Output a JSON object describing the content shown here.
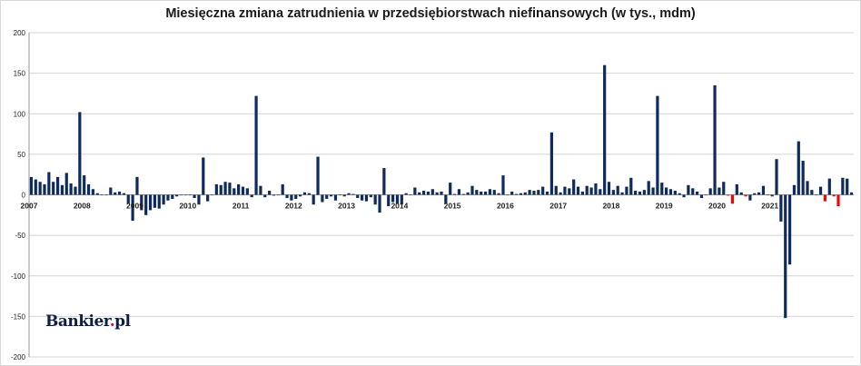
{
  "chart_data": {
    "type": "bar",
    "title": "Miesięczna zmiana zatrudnienia w przedsiębiorstwach niefinansowych (w tys., mdm)",
    "xlabel": "",
    "ylabel": "",
    "ylim": [
      -200,
      200
    ],
    "y_ticks": [
      200,
      150,
      100,
      50,
      0,
      -50,
      -100,
      -150,
      -200
    ],
    "x_labels": [
      "2007",
      "2008",
      "2009",
      "2010",
      "2011",
      "2012",
      "2013",
      "2014",
      "2015",
      "2016",
      "2017",
      "2018",
      "2019",
      "2020",
      "2021"
    ],
    "grid": "horizontal",
    "legend": "none",
    "start": "2007-01",
    "colors": {
      "positive": "#0f2a5c",
      "negative_covid": "#ff0000"
    },
    "values": [
      22,
      19,
      16,
      13,
      28,
      16,
      22,
      12,
      27,
      14,
      10,
      102,
      24,
      13,
      7,
      2,
      0,
      0,
      9,
      3,
      4,
      2,
      -11,
      -32,
      22,
      -19,
      -25,
      -19,
      -16,
      -17,
      -12,
      -7,
      -5,
      -2,
      0,
      0,
      0,
      -4,
      -12,
      46,
      -8,
      0,
      13,
      12,
      16,
      15,
      8,
      13,
      10,
      8,
      -3,
      122,
      11,
      -3,
      5,
      -1,
      0,
      13,
      -4,
      -7,
      -5,
      -2,
      3,
      2,
      -12,
      47,
      -9,
      -5,
      -2,
      -7,
      0,
      -2,
      2,
      1,
      -4,
      -7,
      -8,
      -3,
      -12,
      -22,
      33,
      -14,
      -9,
      -11,
      -12,
      2,
      0,
      9,
      3,
      5,
      4,
      7,
      3,
      4,
      -11,
      15,
      1,
      7,
      1,
      3,
      11,
      6,
      4,
      4,
      7,
      6,
      2,
      24,
      0,
      4,
      1,
      2,
      3,
      6,
      5,
      6,
      10,
      4,
      77,
      11,
      3,
      10,
      8,
      19,
      10,
      4,
      11,
      9,
      14,
      7,
      160,
      16,
      6,
      11,
      3,
      10,
      21,
      5,
      4,
      6,
      17,
      9,
      122,
      15,
      9,
      7,
      5,
      2,
      -3,
      12,
      8,
      4,
      -4,
      0,
      8,
      135,
      9,
      16,
      -1,
      -11,
      13,
      3,
      -2,
      -7,
      2,
      3,
      11,
      0,
      -2,
      44,
      -33,
      -152,
      -86,
      12,
      66,
      42,
      17,
      6,
      0,
      10,
      -8,
      20,
      -2,
      -14,
      21,
      20,
      3
    ],
    "highlight_range": [
      158,
      162
    ],
    "highlight_range_2": [
      179,
      183
    ]
  },
  "logo": {
    "text": "Bankier",
    "suffix_dot": ".",
    "suffix": "pl"
  }
}
